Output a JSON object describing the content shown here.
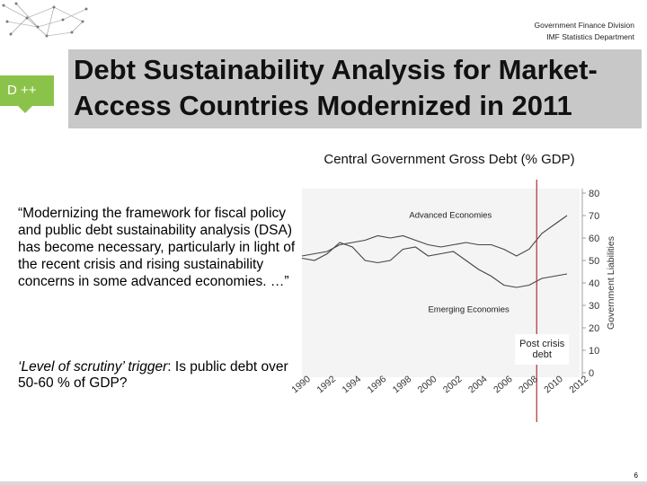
{
  "header": {
    "org_line1": "Government Finance Division",
    "org_line2": "IMF Statistics Department"
  },
  "side_tag": {
    "label": "D ++"
  },
  "title": "Debt Sustainability Analysis for Market-Access Countries Modernized in 2011",
  "quote": "“Modernizing the framework for fiscal policy and public debt sustainability analysis (DSA) has become necessary, particularly in light of the recent crisis and rising sustainability concerns in some advanced economies. …”",
  "trigger": {
    "label": "‘Level of scrutiny’ trigger",
    "text": ": Is public debt over 50-60 % of GDP?"
  },
  "page_number": "6",
  "colors": {
    "title_band": "#c8c8c8",
    "side_tag": "#8bc34a",
    "marker_line": "#b03030",
    "series_line": "#444444"
  },
  "chart_data": {
    "type": "line",
    "title": "Central Government Gross Debt (% GDP)",
    "ylabel": "Government Liabilities",
    "xlabel": "",
    "ylim": [
      0,
      80
    ],
    "yticks": [
      0,
      10,
      20,
      30,
      40,
      50,
      60,
      70,
      80
    ],
    "xlim": [
      1990,
      2012
    ],
    "xticks": [
      "1990",
      "1992",
      "1994",
      "1996",
      "1998",
      "2000",
      "2002",
      "2004",
      "2006",
      "2008",
      "2010",
      "2012"
    ],
    "grid": false,
    "series": [
      {
        "name": "Advanced Economies",
        "x": [
          1990,
          1991,
          1992,
          1993,
          1994,
          1995,
          1996,
          1997,
          1998,
          1999,
          2000,
          2001,
          2002,
          2003,
          2004,
          2005,
          2006,
          2007,
          2008,
          2009,
          2010,
          2011
        ],
        "values": [
          52,
          53,
          54,
          57,
          58,
          59,
          61,
          60,
          61,
          59,
          57,
          56,
          57,
          58,
          57,
          57,
          55,
          52,
          55,
          62,
          66,
          70
        ]
      },
      {
        "name": "Emerging Economies",
        "x": [
          1990,
          1991,
          1992,
          1993,
          1994,
          1995,
          1996,
          1997,
          1998,
          1999,
          2000,
          2001,
          2002,
          2003,
          2004,
          2005,
          2006,
          2007,
          2008,
          2009,
          2010,
          2011
        ],
        "values": [
          51,
          50,
          53,
          58,
          56,
          50,
          49,
          50,
          55,
          56,
          52,
          53,
          54,
          50,
          46,
          43,
          39,
          38,
          39,
          42,
          43,
          44
        ]
      }
    ],
    "annotations": [
      {
        "text": "Post crisis debt",
        "x": 2008.6
      }
    ],
    "marker_x": 2008.6
  }
}
